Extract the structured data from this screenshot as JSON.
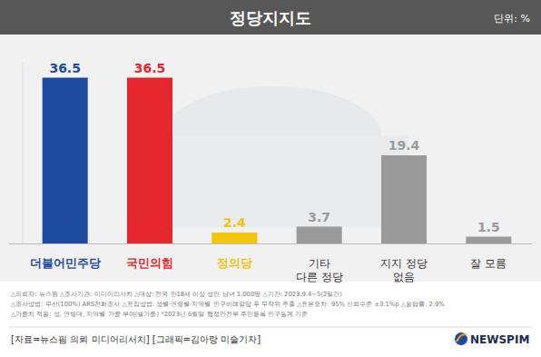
{
  "chart_data": {
    "type": "bar",
    "title": "정당지지도",
    "unit": "단위: %",
    "categories": [
      "더불어민주당",
      "국민의힘",
      "정의당",
      "기타\n다른 정당",
      "지지 정당\n없음",
      "잘 모름"
    ],
    "values": [
      36.5,
      36.5,
      2.4,
      3.7,
      19.4,
      1.5
    ],
    "colors": [
      "#1d4b9f",
      "#e5262d",
      "#f2c40c",
      "#9a9a9a",
      "#9a9a9a",
      "#9a9a9a"
    ],
    "ylim": [
      0,
      40
    ],
    "grid": false,
    "tick_labels": false,
    "data_labels": true,
    "notes": [
      "△의뢰자: 뉴스핌  △조사기관: 미디어리서치  △대상: 전국 만18세 이상 성인 남녀 1,000명  △기간: 2023.9.4~5(2일간)",
      "△조사방법: 무선(100%) ARS전화조사  △표집방법: 성별·연령별·지역별 인구비례할당 후 무작위 추출  △표본오차: 95% 신뢰수준 ±3.1%p  △응답률: 2.9%",
      "△가중치 적용: 성, 연령대, 지역별 가중 부여(셀가중) *2023년 6월말 행정안전부 주민등록 인구통계 기준"
    ],
    "source": "[자료=뉴스핌 의뢰 미디어리서치] [그래픽=김아랑 미술기자]",
    "brand": "NEWSPIM"
  }
}
